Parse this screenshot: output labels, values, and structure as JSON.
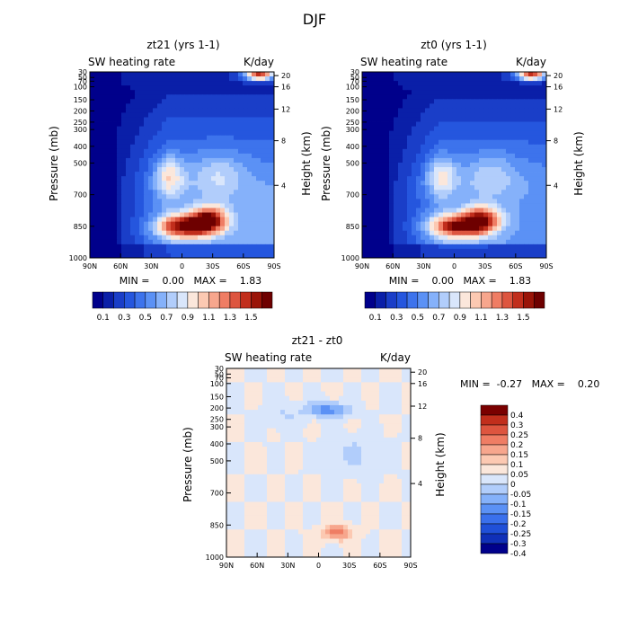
{
  "page": {
    "title": "DJF"
  },
  "palettes": {
    "blue_red": [
      "#00008b",
      "#0a1fa8",
      "#1a3ec8",
      "#2556de",
      "#3d73ec",
      "#5b91f5",
      "#85b1fa",
      "#b1cdfb",
      "#d9e6fb",
      "#fbe7db",
      "#fcc9b2",
      "#f7a68d",
      "#ef7d64",
      "#dd553f",
      "#c12e1c",
      "#9a1408",
      "#6e0000"
    ],
    "diff": [
      "#00008b",
      "#1030b8",
      "#2050d8",
      "#3a70ec",
      "#5b91f5",
      "#85b1fa",
      "#b1cdfb",
      "#d9e6fb",
      "#fbe7db",
      "#fcc9b2",
      "#f7a68d",
      "#ef7d64",
      "#dd553f",
      "#c12e1c",
      "#7a0000"
    ]
  },
  "chart_data": [
    {
      "type": "heatmap",
      "title": "zt21 (yrs 1-1)",
      "left_label": "SW heating rate",
      "right_label": "K/day",
      "ylabel": "Pressure (mb)",
      "ylabel2": "Height (km)",
      "x_ticks": [
        "90N",
        "60N",
        "30N",
        "0",
        "30S",
        "60S",
        "90S"
      ],
      "y_ticks": [
        "30",
        "50",
        "70",
        "100",
        "150",
        "200",
        "250",
        "300",
        "400",
        "500",
        "700",
        "850",
        "1000"
      ],
      "y2_ticks": [
        "20",
        "16",
        "12",
        "8",
        "4"
      ],
      "stats": "MIN =    0.00   MAX =    1.83",
      "colorbar_labels": [
        "0.1",
        "0.3",
        "0.5",
        "0.7",
        "0.9",
        "1.1",
        "1.3",
        "1.5"
      ],
      "min": 0.0,
      "max": 1.83
    },
    {
      "type": "heatmap",
      "title": "zt0 (yrs 1-1)",
      "left_label": "SW heating rate",
      "right_label": "K/day",
      "ylabel": "Pressure (mb)",
      "ylabel2": "Height (km)",
      "x_ticks": [
        "90N",
        "60N",
        "30N",
        "0",
        "30S",
        "60S",
        "90S"
      ],
      "y_ticks": [
        "30",
        "50",
        "70",
        "100",
        "150",
        "200",
        "250",
        "300",
        "400",
        "500",
        "700",
        "850",
        "1000"
      ],
      "y2_ticks": [
        "20",
        "16",
        "12",
        "8",
        "4"
      ],
      "stats": "MIN =    0.00   MAX =    1.83",
      "colorbar_labels": [
        "0.1",
        "0.3",
        "0.5",
        "0.7",
        "0.9",
        "1.1",
        "1.3",
        "1.5"
      ],
      "min": 0.0,
      "max": 1.83
    },
    {
      "type": "heatmap",
      "title": "zt21 - zt0",
      "left_label": "SW heating rate",
      "right_label": "K/day",
      "ylabel": "Pressure (mb)",
      "ylabel2": "Height (km)",
      "x_ticks": [
        "90N",
        "60N",
        "30N",
        "0",
        "30S",
        "60S",
        "90S"
      ],
      "y_ticks": [
        "30",
        "50",
        "70",
        "100",
        "150",
        "200",
        "250",
        "300",
        "400",
        "500",
        "700",
        "850",
        "1000"
      ],
      "y2_ticks": [
        "20",
        "16",
        "12",
        "8",
        "4"
      ],
      "stats": "MIN =  -0.27   MAX =    0.20",
      "colorbar_labels": [
        "0.4",
        "0.3",
        "0.25",
        "0.2",
        "0.15",
        "0.1",
        "0.05",
        "0",
        "-0.05",
        "-0.1",
        "-0.15",
        "-0.2",
        "-0.25",
        "-0.3",
        "-0.4"
      ],
      "min": -0.27,
      "max": 0.2
    }
  ]
}
